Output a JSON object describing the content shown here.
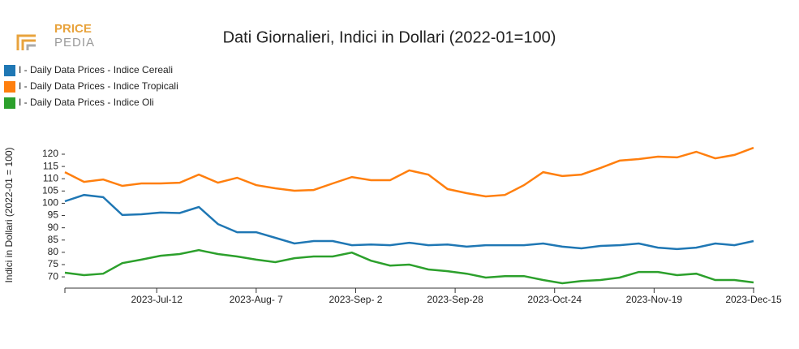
{
  "logo": {
    "line1": "PRICE",
    "line2": "PEDIA"
  },
  "chart_data": {
    "type": "line",
    "title": "Dati Giornalieri, Indici in Dollari (2022-01=100)",
    "y_label": "Indici in Dollari (2022-01 = 100)",
    "x": [
      "2023-06-18",
      "2023-06-23",
      "2023-06-28",
      "2023-07-03",
      "2023-07-08",
      "2023-07-13",
      "2023-07-18",
      "2023-07-23",
      "2023-07-28",
      "2023-08-02",
      "2023-08-07",
      "2023-08-12",
      "2023-08-17",
      "2023-08-22",
      "2023-08-27",
      "2023-09-01",
      "2023-09-06",
      "2023-09-11",
      "2023-09-16",
      "2023-09-21",
      "2023-09-26",
      "2023-10-01",
      "2023-10-06",
      "2023-10-11",
      "2023-10-16",
      "2023-10-21",
      "2023-10-26",
      "2023-10-31",
      "2023-11-05",
      "2023-11-10",
      "2023-11-15",
      "2023-11-20",
      "2023-11-25",
      "2023-11-30",
      "2023-12-05",
      "2023-12-10",
      "2023-12-15"
    ],
    "series": [
      {
        "name": "I - Daily Data Prices - Indice Cereali",
        "color": "#1f77b4",
        "values": [
          100.8,
          103.4,
          102.5,
          95.2,
          95.5,
          96.2,
          96.0,
          98.5,
          91.5,
          88.2,
          88.2,
          85.9,
          83.6,
          84.6,
          84.6,
          82.9,
          83.2,
          82.9,
          83.9,
          82.9,
          83.2,
          82.3,
          82.9,
          82.9,
          82.9,
          83.6,
          82.3,
          81.6,
          82.6,
          82.9,
          83.6,
          81.9,
          81.3,
          81.9,
          83.6,
          82.9,
          84.6
        ]
      },
      {
        "name": "I - Daily Data Prices - Indice Tropicali",
        "color": "#ff7f0e",
        "values": [
          112.7,
          108.7,
          109.7,
          107.1,
          108.1,
          108.1,
          108.4,
          111.7,
          108.4,
          110.4,
          107.4,
          106.1,
          105.1,
          105.4,
          108.1,
          110.7,
          109.4,
          109.4,
          113.4,
          111.7,
          105.8,
          104.1,
          102.8,
          103.4,
          107.4,
          112.7,
          111.1,
          111.7,
          114.4,
          117.4,
          118.0,
          119.0,
          118.7,
          121.0,
          118.3,
          119.7,
          122.6
        ]
      },
      {
        "name": "I - Daily Data Prices - Indice Oli",
        "color": "#2ca02c",
        "values": [
          71.7,
          70.7,
          71.3,
          75.6,
          77.0,
          78.6,
          79.3,
          80.9,
          79.3,
          78.3,
          77.0,
          76.0,
          77.6,
          78.3,
          78.3,
          79.9,
          76.6,
          74.6,
          75.0,
          73.0,
          72.3,
          71.3,
          69.7,
          70.3,
          70.3,
          68.7,
          67.4,
          68.3,
          68.7,
          69.7,
          72.0,
          72.0,
          70.7,
          71.3,
          68.7,
          68.7,
          67.7
        ]
      }
    ],
    "xlim": [
      "2023-06-18",
      "2023-12-15"
    ],
    "xticks": [
      {
        "value": "2023-07-12",
        "label": "2023-Jul-12"
      },
      {
        "value": "2023-08-07",
        "label": "2023-Aug- 7"
      },
      {
        "value": "2023-09-02",
        "label": "2023-Sep- 2"
      },
      {
        "value": "2023-09-28",
        "label": "2023-Sep-28"
      },
      {
        "value": "2023-10-24",
        "label": "2023-Oct-24"
      },
      {
        "value": "2023-11-19",
        "label": "2023-Nov-19"
      },
      {
        "value": "2023-12-15",
        "label": "2023-Dec-15"
      }
    ],
    "ylim": [
      65.4,
      124.3
    ],
    "yticks": [
      70,
      75,
      80,
      85,
      90,
      95,
      100,
      105,
      110,
      115,
      120
    ],
    "legend": "top-left"
  }
}
